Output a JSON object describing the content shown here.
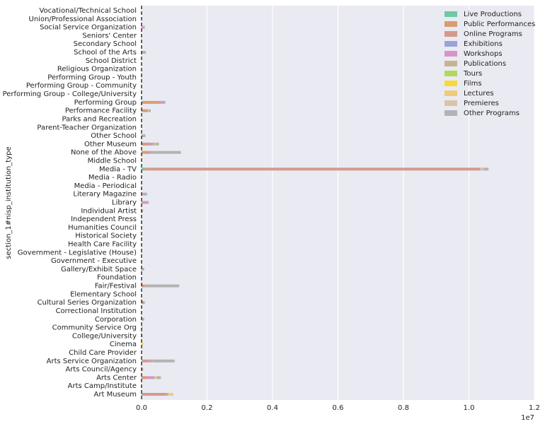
{
  "chart_data": {
    "type": "barh_stacked",
    "y_label": "section_1#nisp_institution_type",
    "x_offset_label": "1e7",
    "categories": [
      "Art Museum",
      "Arts Camp/Institute",
      "Arts Center",
      "Arts Council/Agency",
      "Arts Service Organization",
      "Child Care Provider",
      "Cinema",
      "College/University",
      "Community Service Org",
      "Corporation",
      "Correctional Institution",
      "Cultural Series Organization",
      "Elementary School",
      "Fair/Festival",
      "Foundation",
      "Gallery/Exhibit Space",
      "Government - Executive",
      "Government - Legislative (House)",
      "Health Care Facility",
      "Historical Society",
      "Humanities Council",
      "Independent Press",
      "Individual Artist",
      "Library",
      "Literary Magazine",
      "Media - Periodical",
      "Media - Radio",
      "Media - TV",
      "Middle School",
      "None of the Above",
      "Other Museum",
      "Other School",
      "Parent-Teacher Organization",
      "Parks and Recreation",
      "Performance Facility",
      "Performing Group",
      "Performing Group - College/University",
      "Performing Group - Community",
      "Performing Group - Youth",
      "Religious Organization",
      "School District",
      "School of the Arts",
      "Secondary School",
      "Seniors' Center",
      "Social Service Organization",
      "Union/Professional Association",
      "Vocational/Technical School"
    ],
    "series": [
      {
        "name": "Live Productions",
        "color": "#6ccaa6",
        "values": [
          20000,
          0,
          10000,
          0,
          10000,
          0,
          0,
          0,
          0,
          0,
          0,
          0,
          0,
          0,
          0,
          0,
          0,
          0,
          0,
          0,
          0,
          0,
          0,
          0,
          0,
          0,
          0,
          100000,
          0,
          0,
          20000,
          0,
          0,
          0,
          0,
          30000,
          0,
          0,
          0,
          0,
          0,
          0,
          0,
          0,
          0,
          0,
          0
        ]
      },
      {
        "name": "Public Performances",
        "color": "#d89c73",
        "values": [
          50000,
          0,
          100000,
          0,
          50000,
          0,
          0,
          20000,
          10000,
          0,
          0,
          80000,
          0,
          100000,
          0,
          0,
          0,
          10000,
          0,
          0,
          0,
          0,
          40000,
          30000,
          0,
          0,
          10000,
          150000,
          0,
          150000,
          150000,
          20000,
          0,
          0,
          200000,
          450000,
          0,
          10000,
          10000,
          0,
          0,
          30000,
          0,
          0,
          0,
          0,
          0
        ]
      },
      {
        "name": "Online Programs",
        "color": "#d4998c",
        "values": [
          650000,
          0,
          50000,
          0,
          150000,
          0,
          0,
          0,
          0,
          0,
          0,
          0,
          0,
          0,
          0,
          0,
          0,
          0,
          0,
          0,
          0,
          0,
          0,
          0,
          0,
          0,
          0,
          10100000,
          0,
          100000,
          50000,
          0,
          0,
          0,
          0,
          100000,
          0,
          0,
          0,
          0,
          0,
          0,
          0,
          0,
          0,
          0,
          0
        ]
      },
      {
        "name": "Exhibitions",
        "color": "#9aa3d2",
        "values": [
          20000,
          0,
          0,
          0,
          0,
          0,
          0,
          0,
          0,
          0,
          0,
          0,
          0,
          0,
          0,
          0,
          0,
          0,
          0,
          0,
          0,
          0,
          0,
          0,
          0,
          0,
          0,
          0,
          0,
          0,
          30000,
          0,
          0,
          0,
          0,
          0,
          0,
          0,
          0,
          0,
          0,
          0,
          0,
          0,
          0,
          0,
          0
        ]
      },
      {
        "name": "Workshops",
        "color": "#d695c8",
        "values": [
          50000,
          0,
          200000,
          0,
          100000,
          0,
          0,
          0,
          0,
          0,
          0,
          0,
          0,
          0,
          0,
          0,
          0,
          0,
          0,
          0,
          0,
          0,
          0,
          150000,
          0,
          0,
          0,
          0,
          0,
          50000,
          100000,
          0,
          0,
          0,
          0,
          100000,
          0,
          0,
          0,
          0,
          0,
          10000,
          0,
          0,
          60000,
          0,
          0
        ]
      },
      {
        "name": "Publications",
        "color": "#c8b48f",
        "values": [
          30000,
          0,
          50000,
          0,
          50000,
          0,
          0,
          0,
          0,
          0,
          0,
          0,
          0,
          0,
          0,
          0,
          0,
          0,
          0,
          0,
          0,
          0,
          0,
          0,
          50000,
          0,
          0,
          0,
          0,
          0,
          50000,
          0,
          0,
          0,
          0,
          0,
          0,
          0,
          0,
          0,
          0,
          0,
          0,
          0,
          0,
          0,
          0
        ]
      },
      {
        "name": "Tours",
        "color": "#b3d85a",
        "values": [
          0,
          0,
          0,
          0,
          0,
          0,
          0,
          0,
          0,
          0,
          0,
          0,
          0,
          0,
          0,
          0,
          0,
          0,
          0,
          0,
          0,
          0,
          0,
          0,
          0,
          0,
          0,
          0,
          0,
          0,
          50000,
          0,
          0,
          0,
          0,
          0,
          0,
          0,
          0,
          0,
          0,
          0,
          0,
          0,
          0,
          0,
          0
        ]
      },
      {
        "name": "Films",
        "color": "#f7d93a",
        "values": [
          50000,
          0,
          0,
          0,
          0,
          0,
          50000,
          0,
          0,
          0,
          0,
          0,
          0,
          0,
          0,
          0,
          0,
          0,
          0,
          0,
          0,
          0,
          0,
          0,
          0,
          0,
          0,
          0,
          0,
          0,
          0,
          0,
          0,
          0,
          0,
          0,
          0,
          0,
          0,
          0,
          0,
          0,
          0,
          0,
          0,
          0,
          0
        ]
      },
      {
        "name": "Lectures",
        "color": "#f0cc7a",
        "values": [
          80000,
          0,
          50000,
          0,
          0,
          0,
          0,
          0,
          0,
          0,
          0,
          0,
          0,
          0,
          0,
          0,
          0,
          0,
          0,
          0,
          0,
          0,
          0,
          0,
          0,
          0,
          0,
          0,
          0,
          0,
          0,
          0,
          0,
          0,
          0,
          0,
          0,
          0,
          0,
          0,
          0,
          0,
          0,
          0,
          0,
          0,
          0
        ]
      },
      {
        "name": "Premieres",
        "color": "#d9c4a8",
        "values": [
          20000,
          0,
          0,
          0,
          0,
          0,
          0,
          0,
          0,
          0,
          0,
          0,
          0,
          0,
          0,
          0,
          0,
          0,
          0,
          0,
          0,
          0,
          0,
          0,
          0,
          0,
          0,
          100000,
          0,
          0,
          0,
          0,
          0,
          0,
          20000,
          0,
          0,
          0,
          0,
          0,
          0,
          0,
          0,
          0,
          0,
          0,
          0
        ]
      },
      {
        "name": "Other Programs",
        "color": "#b3b3b3",
        "values": [
          0,
          0,
          130000,
          50000,
          650000,
          0,
          0,
          10000,
          20000,
          80000,
          0,
          20000,
          0,
          1050000,
          0,
          80000,
          0,
          0,
          0,
          0,
          0,
          0,
          0,
          40000,
          120000,
          0,
          0,
          150000,
          0,
          900000,
          80000,
          100000,
          0,
          0,
          60000,
          50000,
          0,
          0,
          0,
          0,
          0,
          90000,
          0,
          0,
          40000,
          0,
          0
        ]
      }
    ],
    "xlim": [
      0,
      12000000
    ],
    "xticks": [
      {
        "value": 0,
        "label": "0.0"
      },
      {
        "value": 2000000,
        "label": "0.2"
      },
      {
        "value": 4000000,
        "label": "0.4"
      },
      {
        "value": 6000000,
        "label": "0.6"
      },
      {
        "value": 8000000,
        "label": "0.8"
      },
      {
        "value": 10000000,
        "label": "1.0"
      },
      {
        "value": 12000000,
        "label": "1.2"
      }
    ],
    "grid": true,
    "legend": "upper right"
  }
}
